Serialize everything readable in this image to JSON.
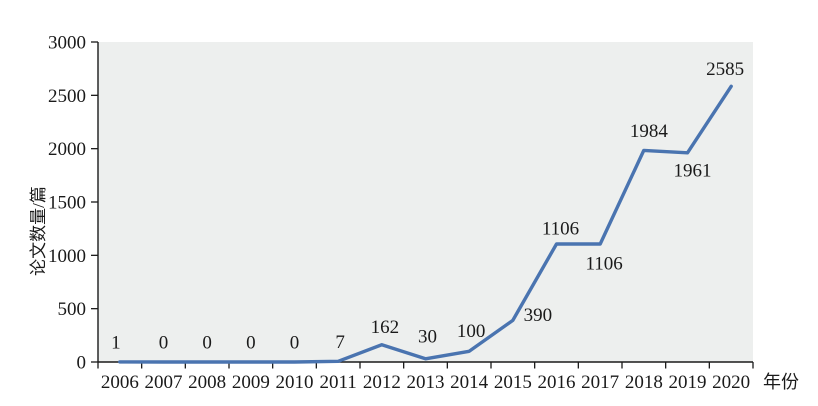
{
  "chart_data": {
    "type": "line",
    "title": "",
    "xlabel": "年份",
    "ylabel": "论文数量/篇",
    "categories": [
      "2006",
      "2007",
      "2008",
      "2009",
      "2010",
      "2011",
      "2012",
      "2013",
      "2014",
      "2015",
      "2016",
      "2017",
      "2018",
      "2019",
      "2020"
    ],
    "series": [
      {
        "name": "论文数量",
        "values": [
          1,
          0,
          0,
          0,
          0,
          7,
          162,
          30,
          100,
          390,
          1106,
          1106,
          1984,
          1961,
          2585
        ]
      }
    ],
    "data_labels": [
      "1",
      "0",
      "0",
      "0",
      "0",
      "7",
      "162",
      "30",
      "100",
      "390",
      "1106",
      "1106",
      "1984",
      "1961",
      "2585"
    ],
    "ylim": [
      0,
      3000
    ],
    "yticks": [
      0,
      500,
      1000,
      1500,
      2000,
      2500,
      3000
    ],
    "grid": false,
    "legend": "none",
    "colors": {
      "line": "#4a74b0",
      "plot_bg": "#edefee",
      "axis": "#1a1a1a",
      "text": "#1a1a1a",
      "page_bg": "#ffffff"
    }
  }
}
